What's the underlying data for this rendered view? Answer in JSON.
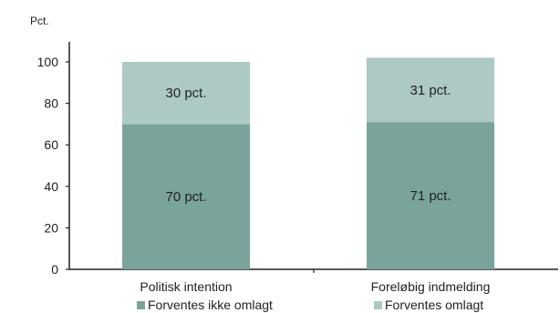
{
  "chart_data": {
    "type": "bar",
    "stacked": true,
    "unit_label": "Pct.",
    "categories": [
      "Politisk intention",
      "Foreløbig indmelding"
    ],
    "series": [
      {
        "name": "Forventes ikke omlagt",
        "values": [
          70,
          71
        ],
        "labels": [
          "70 pct.",
          "71 pct."
        ],
        "color": "#7aa39b"
      },
      {
        "name": "Forventes omlagt",
        "values": [
          30,
          31
        ],
        "labels": [
          "30 pct.",
          "31 pct."
        ],
        "color": "#adc9c4"
      }
    ],
    "y_ticks": [
      "0",
      "20",
      "40",
      "60",
      "80",
      "100"
    ],
    "ylim": [
      0,
      100
    ],
    "grid": false,
    "legend_position": "bottom"
  }
}
